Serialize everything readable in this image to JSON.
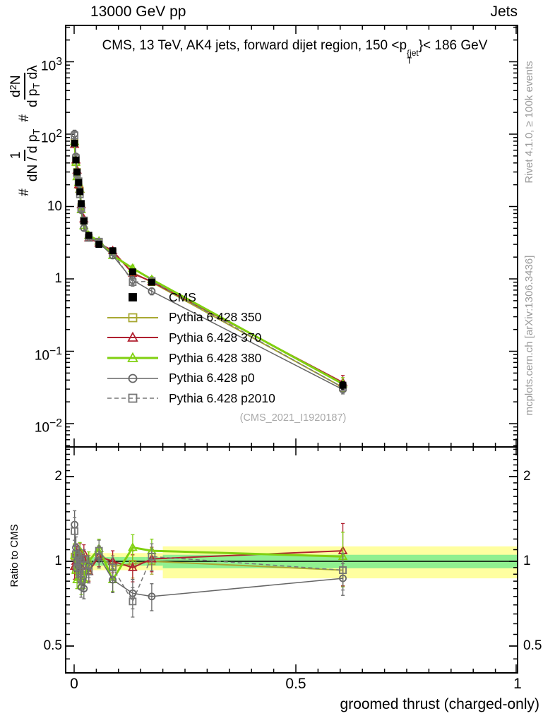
{
  "header": {
    "left": "13000 GeV pp",
    "right": "Jets"
  },
  "title": {
    "prefix": "CMS, 13 TeV, AK4 jets, forward dijet region, 150 <p",
    "sup": "{jet",
    "sub": "T",
    "suffix": "}< 186 GeV"
  },
  "ylabel": {
    "hash1": "#",
    "frac1_num": "1",
    "frac1_den_pre": "dN / d p",
    "frac1_den_sub": "T",
    "hash2": "#",
    "frac2_num_pre": "d",
    "frac2_num_sup": "2",
    "frac2_num_post": "N",
    "frac2_den_pre": "d p",
    "frac2_den_sub": "T",
    "frac2_den_post": " dλ"
  },
  "ratio_label": "Ratio to CMS",
  "xlabel": "groomed thrust (charged-only)",
  "watermark": "(CMS_2021_I1920187)",
  "right_side": {
    "top": "Rivet 4.1.0, ≥ 100k events",
    "bottom": "mcplots.cern.ch [arXiv:1306.3436]"
  },
  "chart_data": {
    "type": "line",
    "title": "CMS, 13 TeV, AK4 jets, forward dijet region, 150 < pT(jet) < 186 GeV",
    "xlabel": "groomed thrust (charged-only)",
    "ylabel_main": "# 1/(dN/dpT) # d2N/(dpT dlambda)",
    "ylabel_ratio": "Ratio to CMS",
    "x_range": [
      0,
      1
    ],
    "x_tick_labels": [
      {
        "v": 0,
        "label": "0"
      },
      {
        "v": 0.5,
        "label": "0.5"
      },
      {
        "v": 1,
        "label": "1"
      }
    ],
    "main_y_scale": "log",
    "main_y_tick_exps": [
      3,
      2,
      1,
      0,
      -1,
      -2
    ],
    "ratio_y_scale": "log",
    "ratio_tick_labels": [
      {
        "v": 2,
        "label": "2"
      },
      {
        "v": 1,
        "label": "1"
      },
      {
        "v": 0.5,
        "label": "0.5"
      }
    ],
    "bin_edges": [
      0,
      0.002,
      0.005,
      0.008,
      0.0115,
      0.0145,
      0.018,
      0.026,
      0.04,
      0.072,
      0.102,
      0.162,
      0.2,
      1.0
    ],
    "x": [
      0.001,
      0.004,
      0.0065,
      0.01,
      0.013,
      0.016,
      0.022,
      0.033,
      0.056,
      0.087,
      0.132,
      0.175,
      0.606
    ],
    "cms": {
      "label": "CMS",
      "color": "#000000",
      "marker": "square-filled",
      "values": [
        75,
        44,
        30,
        21.5,
        16,
        11,
        6.3,
        4.0,
        3.0,
        2.45,
        1.25,
        0.9,
        0.034
      ],
      "err_frac": [
        0.06,
        0.05,
        0.05,
        0.05,
        0.05,
        0.05,
        0.05,
        0.05,
        0.06,
        0.06,
        0.08,
        0.08,
        0.12
      ]
    },
    "series": [
      {
        "label": "Pythia 6.428 350",
        "color": "#a8a832",
        "marker": "square",
        "line": "solid",
        "lw": 2,
        "ratio": [
          1.04,
          0.93,
          1.0,
          0.92,
          1.04,
          0.9,
          1.01,
          0.93,
          1.04,
          0.96,
          0.98,
          1.0,
          0.93
        ],
        "err_frac": [
          0.1,
          0.08,
          0.07,
          0.07,
          0.07,
          0.07,
          0.07,
          0.08,
          0.08,
          0.09,
          0.11,
          0.1,
          0.12
        ]
      },
      {
        "label": "Pythia 6.428 370",
        "color": "#b02030",
        "marker": "triangle",
        "line": "solid",
        "lw": 2,
        "ratio": [
          0.96,
          1.0,
          1.06,
          0.93,
          1.08,
          0.96,
          1.07,
          0.92,
          1.04,
          1.0,
          0.95,
          1.02,
          1.09
        ],
        "err_frac": [
          0.1,
          0.08,
          0.07,
          0.07,
          0.07,
          0.07,
          0.07,
          0.08,
          0.08,
          0.09,
          0.11,
          0.1,
          0.25
        ]
      },
      {
        "label": "Pythia 6.428 380",
        "color": "#80d010",
        "marker": "triangle",
        "line": "solid",
        "lw": 3,
        "ratio": [
          1.05,
          0.93,
          0.86,
          1.0,
          1.09,
          0.82,
          0.86,
          1.0,
          1.11,
          0.86,
          1.12,
          1.09,
          1.04
        ],
        "err_frac": [
          0.1,
          0.08,
          0.07,
          0.07,
          0.07,
          0.07,
          0.07,
          0.08,
          0.08,
          0.09,
          0.11,
          0.1,
          0.22
        ]
      },
      {
        "label": "Pythia 6.428 p0",
        "color": "#666666",
        "marker": "circle",
        "line": "solid",
        "lw": 1.5,
        "ratio": [
          1.35,
          1.12,
          1.0,
          0.96,
          1.02,
          0.81,
          0.8,
          0.96,
          1.04,
          0.86,
          0.77,
          0.75,
          0.87
        ],
        "err_frac": [
          0.12,
          0.09,
          0.08,
          0.08,
          0.08,
          0.08,
          0.08,
          0.09,
          0.09,
          0.1,
          0.12,
          0.11,
          0.13
        ]
      },
      {
        "label": "Pythia 6.428 p2010",
        "color": "#777777",
        "marker": "square",
        "line": "dashed",
        "lw": 1.5,
        "ratio": [
          1.28,
          1.06,
          0.95,
          1.04,
          0.92,
          0.86,
          1.02,
          0.92,
          1.09,
          0.95,
          0.72,
          1.04,
          0.93
        ],
        "err_frac": [
          0.12,
          0.09,
          0.08,
          0.08,
          0.08,
          0.08,
          0.08,
          0.09,
          0.09,
          0.1,
          0.12,
          0.11,
          0.15
        ]
      }
    ],
    "bands": {
      "yellow": "#ffffa0",
      "green": "#90f090",
      "per_bin_yellow_frac": 0.07,
      "per_bin_green_frac": 0.035,
      "last_bin": {
        "x0": 0.2,
        "x1": 1.0,
        "yellow_frac": 0.13,
        "green_frac": 0.055
      }
    },
    "legend_position": "left-middle",
    "grid": false
  }
}
